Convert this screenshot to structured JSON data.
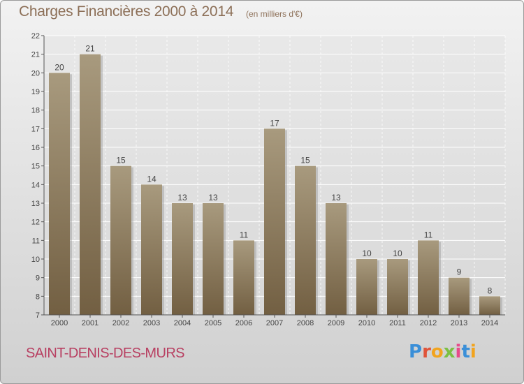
{
  "header": {
    "title": "Charges Financières 2000 à 2014",
    "subtitle": "(en milliers d'€)"
  },
  "footer": {
    "city": "SAINT-DENIS-DES-MURS",
    "logo": "Proxiti"
  },
  "colors": {
    "bar_top": "#a89a7e",
    "bar_bottom": "#725f42",
    "title": "#8c6f57",
    "city": "#b84062",
    "axis": "#555555",
    "grid": "#ffffff"
  },
  "chart_data": {
    "type": "bar",
    "title": "Charges Financières 2000 à 2014",
    "subtitle": "(en milliers d'€)",
    "categories": [
      "2000",
      "2001",
      "2002",
      "2003",
      "2004",
      "2005",
      "2006",
      "2007",
      "2008",
      "2009",
      "2010",
      "2011",
      "2012",
      "2013",
      "2014"
    ],
    "values": [
      20,
      21,
      15,
      14,
      13,
      13,
      11,
      17,
      15,
      13,
      10,
      10,
      11,
      9,
      8
    ],
    "ylim": [
      7,
      22
    ],
    "yticks": [
      7,
      8,
      9,
      10,
      11,
      12,
      13,
      14,
      15,
      16,
      17,
      18,
      19,
      20,
      21,
      22
    ],
    "grid": true,
    "data_labels": true
  }
}
